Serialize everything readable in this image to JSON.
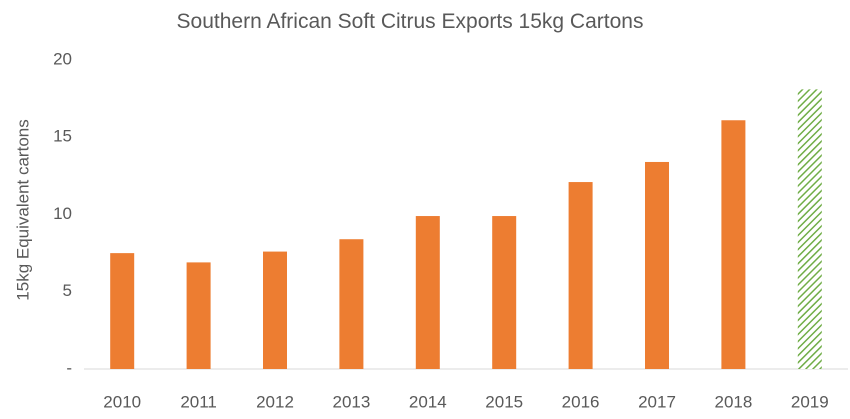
{
  "chart_data": {
    "type": "bar",
    "title": "Southern  African Soft Citrus Exports 15kg Cartons",
    "y_label": "15kg Equivalent cartons",
    "categories": [
      "2010",
      "2011",
      "2012",
      "2013",
      "2014",
      "2015",
      "2016",
      "2017",
      "2018",
      "2019"
    ],
    "values": [
      7.5,
      6.9,
      7.6,
      8.4,
      9.9,
      9.9,
      12.1,
      13.4,
      16.1,
      18.1
    ],
    "colors": [
      "#ed7d31",
      "#ed7d31",
      "#ed7d31",
      "#ed7d31",
      "#ed7d31",
      "#ed7d31",
      "#ed7d31",
      "#ed7d31",
      "#ed7d31",
      "#70ad47"
    ],
    "hatched": [
      false,
      false,
      false,
      false,
      false,
      false,
      false,
      false,
      false,
      true
    ],
    "ylim": [
      0,
      20
    ],
    "yticks": [
      {
        "value": 0,
        "label": "-"
      },
      5,
      10,
      15,
      20
    ],
    "grid": false
  }
}
